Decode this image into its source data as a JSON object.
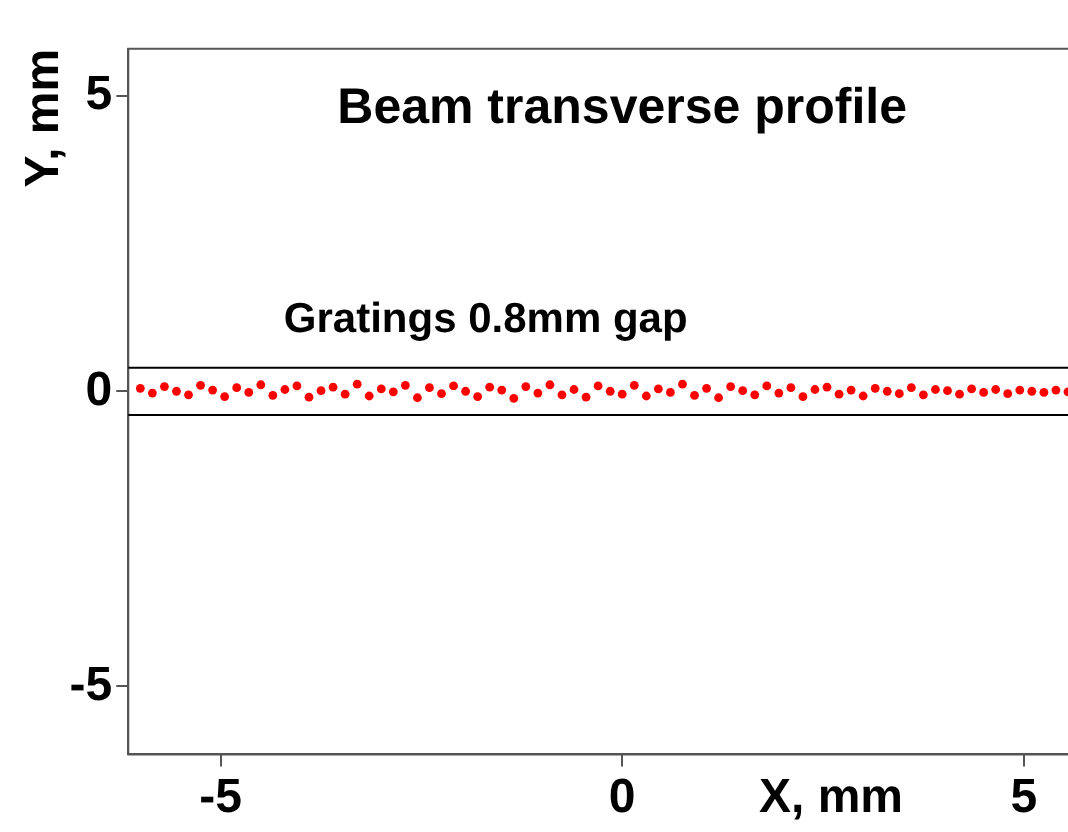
{
  "chart_data": {
    "type": "scatter",
    "title": "Beam transverse profile",
    "xlabel": "X, mm",
    "ylabel": "Y, mm",
    "annotations": [
      "Gratings 0.8mm gap"
    ],
    "xlim": [
      -6.15,
      5.65
    ],
    "ylim": [
      -6.15,
      5.8
    ],
    "xticks": [
      -5,
      0,
      5
    ],
    "yticks": [
      -5,
      0,
      5
    ],
    "grid": false,
    "legend": false,
    "marker": "circle",
    "ref_lines": [
      {
        "axis": "y",
        "value": 0.4,
        "color": "#000000"
      },
      {
        "axis": "y",
        "value": -0.4,
        "color": "#000000"
      }
    ],
    "series": [
      {
        "color": "#ff0000",
        "x": [
          -6.0,
          -5.85,
          -5.7,
          -5.55,
          -5.4,
          -5.25,
          -5.1,
          -4.95,
          -4.8,
          -4.65,
          -4.5,
          -4.35,
          -4.2,
          -4.05,
          -3.9,
          -3.75,
          -3.6,
          -3.45,
          -3.3,
          -3.15,
          -3.0,
          -2.85,
          -2.7,
          -2.55,
          -2.4,
          -2.25,
          -2.1,
          -1.95,
          -1.8,
          -1.65,
          -1.5,
          -1.35,
          -1.2,
          -1.05,
          -0.9,
          -0.75,
          -0.6,
          -0.45,
          -0.3,
          -0.15,
          0.0,
          0.15,
          0.3,
          0.45,
          0.6,
          0.75,
          0.9,
          1.05,
          1.2,
          1.35,
          1.5,
          1.65,
          1.8,
          1.95,
          2.1,
          2.25,
          2.4,
          2.55,
          2.7,
          2.85,
          3.0,
          3.15,
          3.3,
          3.45,
          3.6,
          3.75,
          3.9,
          4.05,
          4.2,
          4.35,
          4.5,
          4.65,
          4.8,
          4.95,
          5.1,
          5.25,
          5.4,
          5.55
        ],
        "values": [
          0.05,
          -0.03,
          0.08,
          0.0,
          -0.06,
          0.1,
          0.02,
          -0.09,
          0.06,
          -0.02,
          0.11,
          -0.07,
          0.03,
          0.09,
          -0.1,
          0.01,
          0.07,
          -0.05,
          0.12,
          -0.08,
          0.04,
          -0.01,
          0.1,
          -0.11,
          0.06,
          -0.04,
          0.09,
          0.0,
          -0.09,
          0.07,
          0.02,
          -0.12,
          0.08,
          -0.03,
          0.11,
          -0.06,
          0.03,
          -0.1,
          0.09,
          0.0,
          -0.05,
          0.1,
          -0.08,
          0.04,
          -0.02,
          0.12,
          -0.07,
          0.05,
          -0.11,
          0.08,
          0.01,
          -0.06,
          0.09,
          -0.03,
          0.06,
          -0.09,
          0.03,
          0.07,
          -0.05,
          0.02,
          -0.08,
          0.05,
          0.0,
          -0.04,
          0.06,
          -0.06,
          0.03,
          0.01,
          -0.05,
          0.04,
          -0.02,
          0.03,
          -0.04,
          0.02,
          0.0,
          -0.02,
          0.02,
          -0.01
        ]
      }
    ]
  }
}
